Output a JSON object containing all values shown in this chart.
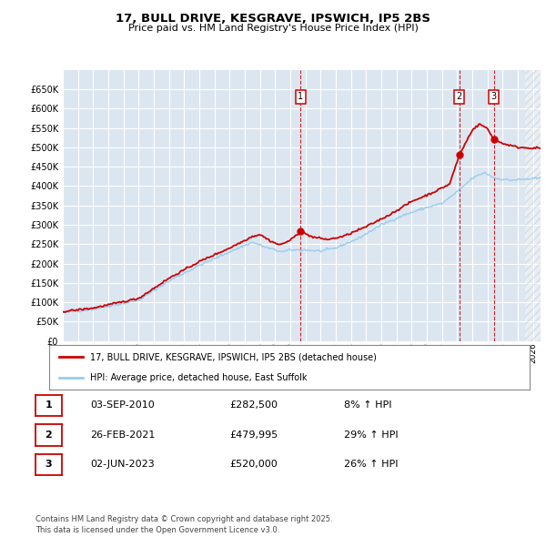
{
  "title": "17, BULL DRIVE, KESGRAVE, IPSWICH, IP5 2BS",
  "subtitle": "Price paid vs. HM Land Registry's House Price Index (HPI)",
  "ylim": [
    0,
    700000
  ],
  "yticks": [
    0,
    50000,
    100000,
    150000,
    200000,
    250000,
    300000,
    350000,
    400000,
    450000,
    500000,
    550000,
    600000,
    650000
  ],
  "xlim_start": 1995.0,
  "xlim_end": 2026.5,
  "plot_bg_color": "#dce6f1",
  "grid_color": "#ffffff",
  "red_line_color": "#cc0000",
  "blue_line_color": "#99ccee",
  "vline_color": "#cc0000",
  "annotation_box_color": "#cc0000",
  "sales": [
    {
      "date_num": 2010.67,
      "price": 282500,
      "label": "1"
    },
    {
      "date_num": 2021.15,
      "price": 479995,
      "label": "2"
    },
    {
      "date_num": 2023.42,
      "price": 520000,
      "label": "3"
    }
  ],
  "legend_entries": [
    {
      "label": "17, BULL DRIVE, KESGRAVE, IPSWICH, IP5 2BS (detached house)",
      "color": "#cc0000"
    },
    {
      "label": "HPI: Average price, detached house, East Suffolk",
      "color": "#99ccee"
    }
  ],
  "table_rows": [
    {
      "num": "1",
      "date": "03-SEP-2010",
      "price": "£282,500",
      "change": "8% ↑ HPI"
    },
    {
      "num": "2",
      "date": "26-FEB-2021",
      "price": "£479,995",
      "change": "29% ↑ HPI"
    },
    {
      "num": "3",
      "date": "02-JUN-2023",
      "price": "£520,000",
      "change": "26% ↑ HPI"
    }
  ],
  "footer": "Contains HM Land Registry data © Crown copyright and database right 2025.\nThis data is licensed under the Open Government Licence v3.0."
}
